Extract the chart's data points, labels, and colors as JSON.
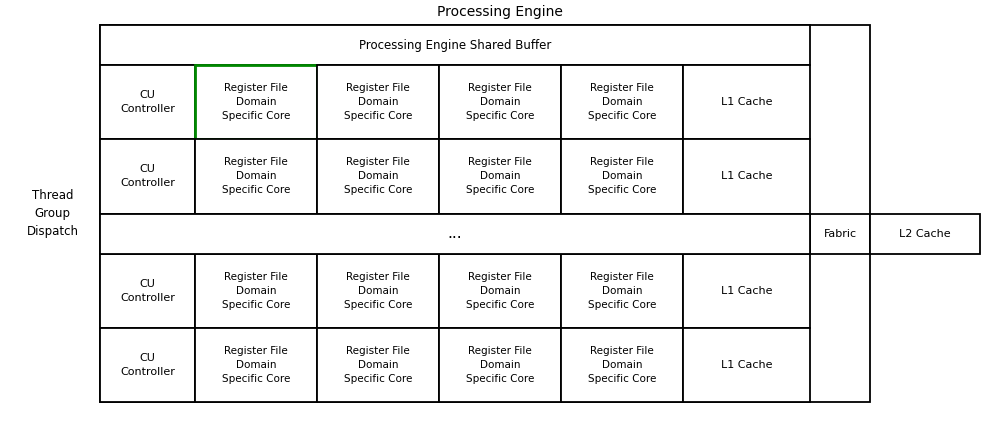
{
  "title": "Processing Engine",
  "shared_buffer_label": "Processing Engine Shared Buffer",
  "thread_group_dispatch": "Thread\nGroup\nDispatch",
  "cu_controller": "CU\nController",
  "register_file_label": "Register File\nDomain\nSpecific Core",
  "l1_cache": "L1 Cache",
  "fabric": "Fabric",
  "l2_cache": "L2 Cache",
  "dots": "...",
  "bg_color": "#ffffff",
  "border_color": "#000000",
  "green_border_color": "#008800",
  "text_color": "#000000",
  "font_size": 8.0,
  "title_font_size": 10.0,
  "lw": 1.3
}
